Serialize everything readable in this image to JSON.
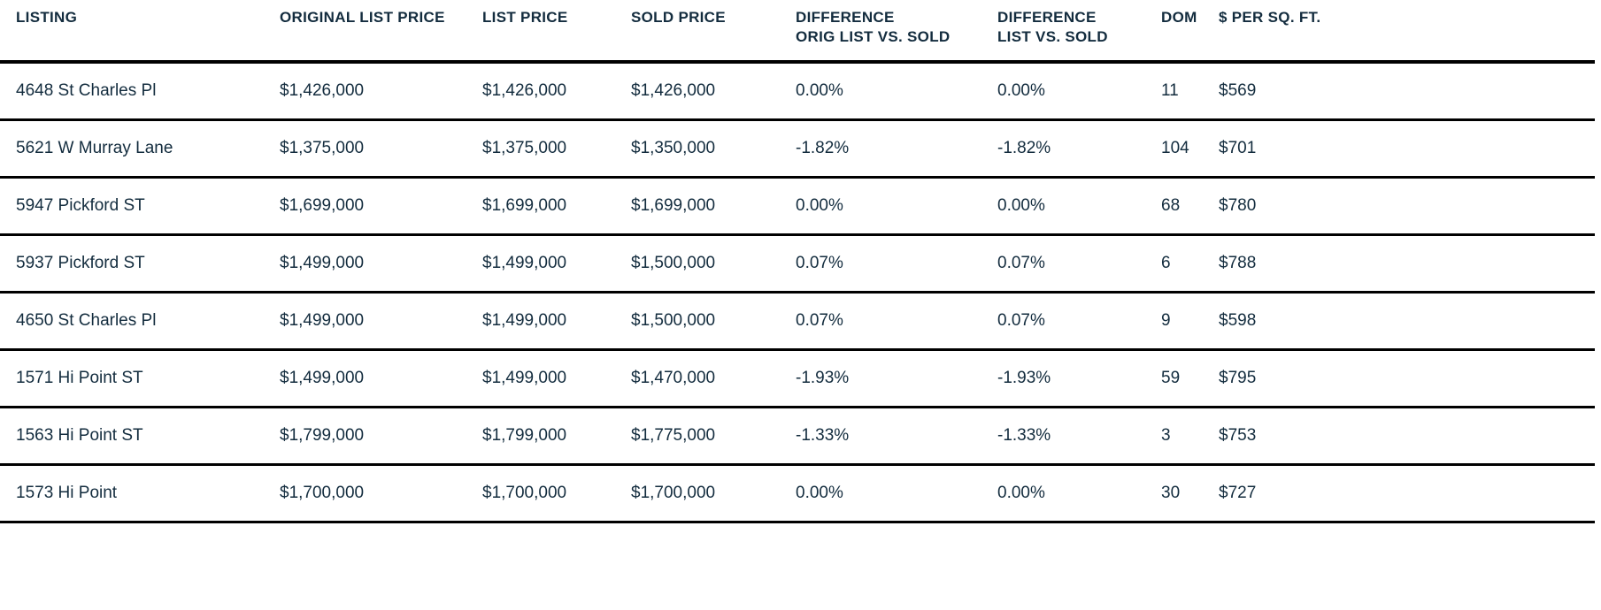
{
  "colors": {
    "text": "#132c3e",
    "rule": "#000000",
    "background": "#ffffff"
  },
  "table": {
    "columns": [
      {
        "id": "listing",
        "line1": "LISTING",
        "line2": ""
      },
      {
        "id": "original-list-price",
        "line1": "ORIGINAL LIST PRICE",
        "line2": ""
      },
      {
        "id": "list-price",
        "line1": "LIST PRICE",
        "line2": ""
      },
      {
        "id": "sold-price",
        "line1": "SOLD PRICE",
        "line2": ""
      },
      {
        "id": "diff-orig-vs-sold",
        "line1": "DIFFERENCE",
        "line2": "ORIG LIST VS. SOLD"
      },
      {
        "id": "diff-list-vs-sold",
        "line1": "DIFFERENCE",
        "line2": "LIST VS. SOLD"
      },
      {
        "id": "dom",
        "line1": "DOM",
        "line2": ""
      },
      {
        "id": "price-per-sqft",
        "line1": "$ PER SQ. FT.",
        "line2": ""
      }
    ],
    "rows": [
      [
        "4648 St Charles Pl",
        "$1,426,000",
        "$1,426,000",
        "$1,426,000",
        "0.00%",
        "0.00%",
        "11",
        "$569"
      ],
      [
        "5621 W Murray Lane",
        "$1,375,000",
        "$1,375,000",
        "$1,350,000",
        "-1.82%",
        "-1.82%",
        "104",
        "$701"
      ],
      [
        "5947 Pickford ST",
        "$1,699,000",
        "$1,699,000",
        "$1,699,000",
        "0.00%",
        "0.00%",
        "68",
        "$780"
      ],
      [
        "5937 Pickford ST",
        "$1,499,000",
        "$1,499,000",
        "$1,500,000",
        "0.07%",
        "0.07%",
        "6",
        "$788"
      ],
      [
        "4650 St Charles Pl",
        "$1,499,000",
        "$1,499,000",
        "$1,500,000",
        "0.07%",
        "0.07%",
        "9",
        "$598"
      ],
      [
        "1571 Hi Point ST",
        "$1,499,000",
        "$1,499,000",
        "$1,470,000",
        "-1.93%",
        "-1.93%",
        "59",
        "$795"
      ],
      [
        "1563 Hi Point ST",
        "$1,799,000",
        "$1,799,000",
        "$1,775,000",
        "-1.33%",
        "-1.33%",
        "3",
        "$753"
      ],
      [
        "1573 Hi Point",
        "$1,700,000",
        "$1,700,000",
        "$1,700,000",
        "0.00%",
        "0.00%",
        "30",
        "$727"
      ]
    ]
  }
}
